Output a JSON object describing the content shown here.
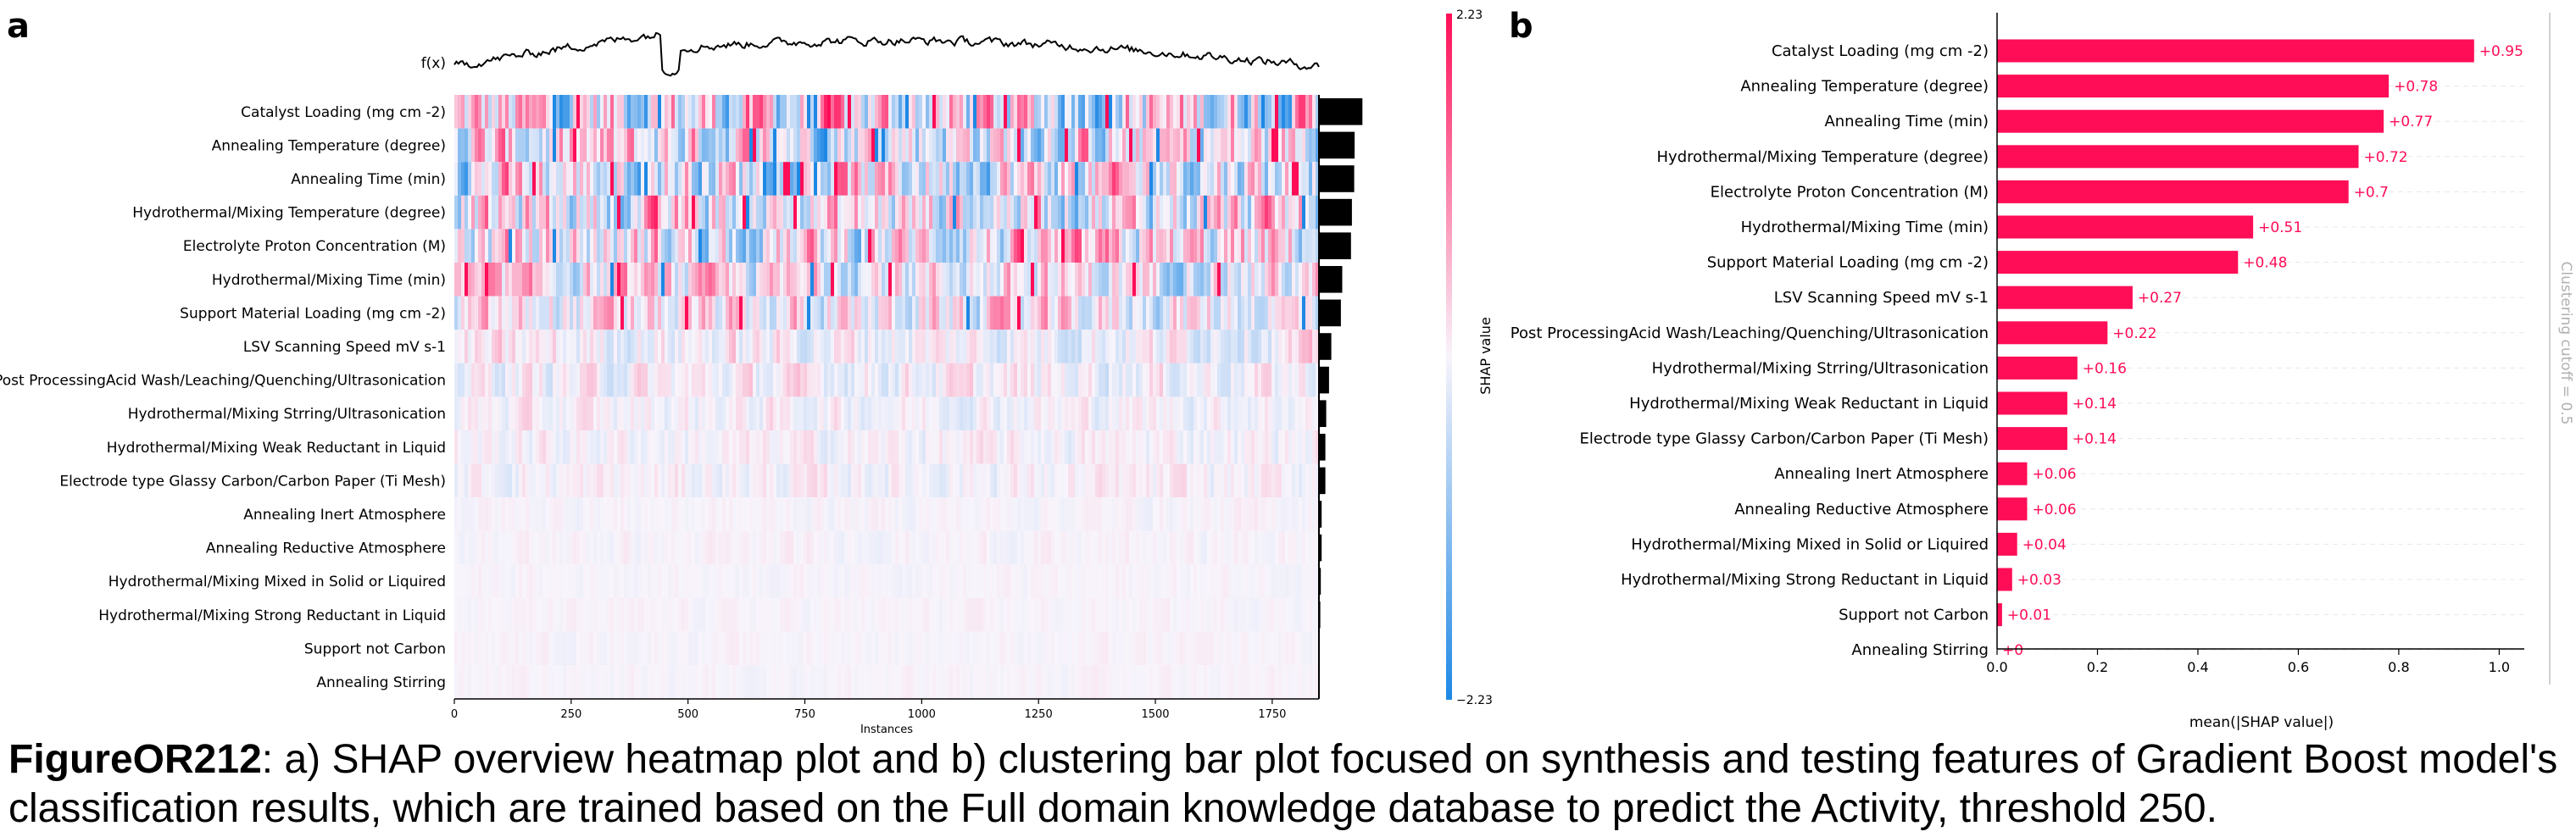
{
  "panel_a": {
    "label": "a",
    "fx_label": "f(x)",
    "chart_data": {
      "type": "heatmap",
      "title": "",
      "xlabel": "Instances",
      "ylabel": "",
      "xlim": [
        0,
        1850
      ],
      "xticks": [
        0,
        250,
        500,
        750,
        1000,
        1250,
        1500,
        1750
      ],
      "colorbar": {
        "label": "SHAP value",
        "max_label": "2.23",
        "min_label": "−2.23",
        "range": [
          -2.23,
          2.23
        ],
        "low_color": "#1e88e5",
        "mid_color": "#ffffff",
        "high_color": "#ff0d57"
      },
      "features": [
        "Catalyst Loading (mg cm -2)",
        "Annealing Temperature (degree)",
        "Annealing Time (min)",
        "Hydrothermal/Mixing Temperature (degree)",
        "Electrolyte Proton Concentration (M)",
        "Hydrothermal/Mixing Time (min)",
        "Support Material Loading (mg cm -2)",
        "LSV Scanning Speed mV s-1",
        "Post ProcessingAcid Wash/Leaching/Quenching/Ultrasonication",
        "Hydrothermal/Mixing Strring/Ultrasonication",
        "Hydrothermal/Mixing Weak Reductant in Liquid",
        "Electrode type Glassy Carbon/Carbon Paper (Ti Mesh)",
        "Annealing Inert Atmosphere",
        "Annealing Reductive Atmosphere",
        "Hydrothermal/Mixing Mixed in Solid or Liquired",
        "Hydrothermal/Mixing Strong Reductant in Liquid",
        "Support not Carbon",
        "Annealing Stirring"
      ],
      "feature_importance_bars": [
        0.95,
        0.78,
        0.77,
        0.72,
        0.7,
        0.51,
        0.48,
        0.27,
        0.22,
        0.16,
        0.14,
        0.14,
        0.06,
        0.06,
        0.04,
        0.03,
        0.01,
        0.0
      ]
    }
  },
  "panel_b": {
    "label": "b",
    "cutoff_label": "Clustering cutoff = 0.5",
    "chart_data": {
      "type": "bar",
      "orientation": "horizontal",
      "title": "",
      "xlabel": "mean(|SHAP value|)",
      "ylabel": "",
      "xlim": [
        0,
        1.05
      ],
      "xticks": [
        "0.0",
        "0.2",
        "0.4",
        "0.6",
        "0.8",
        "1.0"
      ],
      "bar_color": "#ff0d57",
      "categories": [
        "Catalyst Loading (mg cm -2)",
        "Annealing Temperature (degree)",
        "Annealing Time (min)",
        "Hydrothermal/Mixing Temperature (degree)",
        "Electrolyte Proton Concentration (M)",
        "Hydrothermal/Mixing Time (min)",
        "Support Material Loading (mg cm -2)",
        "LSV Scanning Speed mV s-1",
        "Post ProcessingAcid Wash/Leaching/Quenching/Ultrasonication",
        "Hydrothermal/Mixing Strring/Ultrasonication",
        "Hydrothermal/Mixing Weak Reductant in Liquid",
        "Electrode type Glassy Carbon/Carbon Paper (Ti Mesh)",
        "Annealing Inert Atmosphere",
        "Annealing Reductive Atmosphere",
        "Hydrothermal/Mixing Mixed in Solid or Liquired",
        "Hydrothermal/Mixing Strong Reductant in Liquid",
        "Support not Carbon",
        "Annealing Stirring"
      ],
      "values": [
        0.95,
        0.78,
        0.77,
        0.72,
        0.7,
        0.51,
        0.48,
        0.27,
        0.22,
        0.16,
        0.14,
        0.14,
        0.06,
        0.06,
        0.04,
        0.03,
        0.01,
        0.0
      ],
      "value_labels": [
        "+0.95",
        "+0.78",
        "+0.77",
        "+0.72",
        "+0.7",
        "+0.51",
        "+0.48",
        "+0.27",
        "+0.22",
        "+0.16",
        "+0.14",
        "+0.14",
        "+0.06",
        "+0.06",
        "+0.04",
        "+0.03",
        "+0.01",
        "+0"
      ]
    }
  },
  "caption": {
    "lead": "FigureOR212",
    "text": ": a) SHAP overview heatmap plot and b) clustering bar plot focused on synthesis and testing features of Gradient Boost model's classification results, which are trained based on the Full domain knowledge database to predict the Activity, threshold 250."
  }
}
